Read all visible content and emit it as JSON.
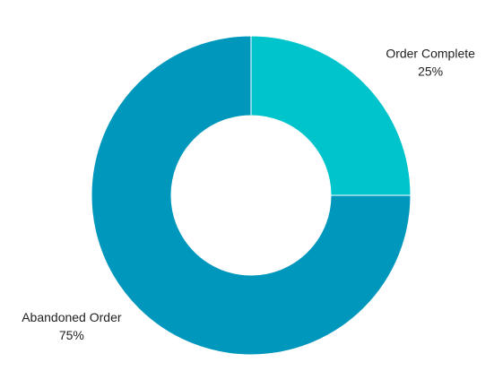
{
  "chart_data": {
    "type": "donut",
    "categories": [
      "Order Complete",
      "Abandoned Order"
    ],
    "values": [
      25,
      75
    ],
    "value_labels": [
      "25%",
      "75%"
    ],
    "colors": [
      "#00c4cc",
      "#0097bd"
    ]
  }
}
